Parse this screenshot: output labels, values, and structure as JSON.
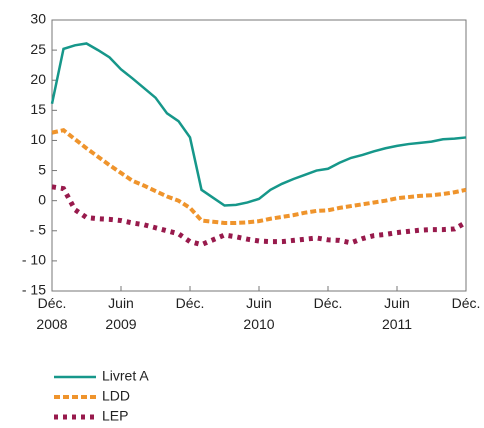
{
  "chart_data": {
    "type": "line",
    "categories": [
      "Déc. 2008",
      null,
      null,
      null,
      null,
      null,
      "Juin 2009",
      null,
      null,
      null,
      null,
      null,
      "Déc.",
      null,
      null,
      null,
      null,
      null,
      "Juin 2010",
      null,
      null,
      null,
      null,
      null,
      "Déc.",
      null,
      null,
      null,
      null,
      null,
      "Juin 2011",
      null,
      null,
      null,
      null,
      null,
      "Déc."
    ],
    "series": [
      {
        "name": "Livret A",
        "color": "#16978a",
        "style": "solid",
        "values": [
          16.1,
          25.2,
          25.8,
          26.1,
          25,
          23.8,
          21.8,
          20.3,
          18.7,
          17.1,
          14.5,
          13.2,
          10.5,
          1.8,
          0.5,
          -0.8,
          -0.7,
          -0.3,
          0.3,
          1.8,
          2.8,
          3.6,
          4.3,
          5,
          5.3,
          6.3,
          7.1,
          7.6,
          8.2,
          8.7,
          9.1,
          9.4,
          9.6,
          9.8,
          10.2,
          10.3,
          10.5
        ]
      },
      {
        "name": "LDD",
        "color": "#ef942c",
        "style": "dashed",
        "values": [
          11.3,
          11.7,
          10.2,
          8.7,
          7.3,
          5.9,
          4.6,
          3.3,
          2.5,
          1.6,
          0.7,
          0,
          -1.2,
          -3.3,
          -3.5,
          -3.7,
          -3.7,
          -3.6,
          -3.4,
          -3,
          -2.7,
          -2.4,
          -2,
          -1.7,
          -1.6,
          -1.2,
          -0.9,
          -0.6,
          -0.3,
          0,
          0.4,
          0.6,
          0.8,
          0.9,
          1.1,
          1.4,
          1.8
        ]
      },
      {
        "name": "LEP",
        "color": "#981a4c",
        "style": "dotted",
        "values": [
          2.3,
          2,
          -1.5,
          -2.8,
          -3,
          -3.1,
          -3.3,
          -3.7,
          -4,
          -4.5,
          -5,
          -5.5,
          -6.8,
          -7.3,
          -6.5,
          -5.7,
          -6,
          -6.4,
          -6.7,
          -6.8,
          -6.8,
          -6.6,
          -6.4,
          -6.2,
          -6.5,
          -6.6,
          -7,
          -6.3,
          -5.8,
          -5.6,
          -5.3,
          -5.1,
          -4.9,
          -4.8,
          -4.8,
          -4.7,
          -3.6
        ]
      }
    ],
    "ylim": [
      -15,
      30
    ],
    "yticks": [
      {
        "value": -15,
        "label": "- 15"
      },
      {
        "value": -10,
        "label": "- 10"
      },
      {
        "value": -5,
        "label": "- 5"
      },
      0,
      5,
      10,
      15,
      20,
      25,
      30
    ]
  }
}
